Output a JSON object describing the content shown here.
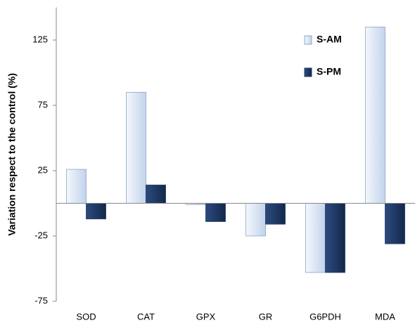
{
  "chart_data": {
    "type": "bar",
    "y_label": "Variation respect to the control (%)",
    "categories": [
      "SOD",
      "CAT",
      "GPX",
      "GR",
      "G6PDH",
      "MDA"
    ],
    "series": [
      {
        "name": "S-AM",
        "color": "#dbe5f4",
        "values": [
          26,
          85,
          -1,
          -25,
          -53,
          135
        ]
      },
      {
        "name": "S-PM",
        "color": "#1f3a66",
        "values": [
          -12,
          14,
          -14,
          -16,
          -53,
          -31
        ]
      }
    ],
    "ylim": [
      -75,
      150
    ],
    "yticks": [
      -75,
      -25,
      25,
      75,
      125
    ],
    "legend": "upper right"
  }
}
